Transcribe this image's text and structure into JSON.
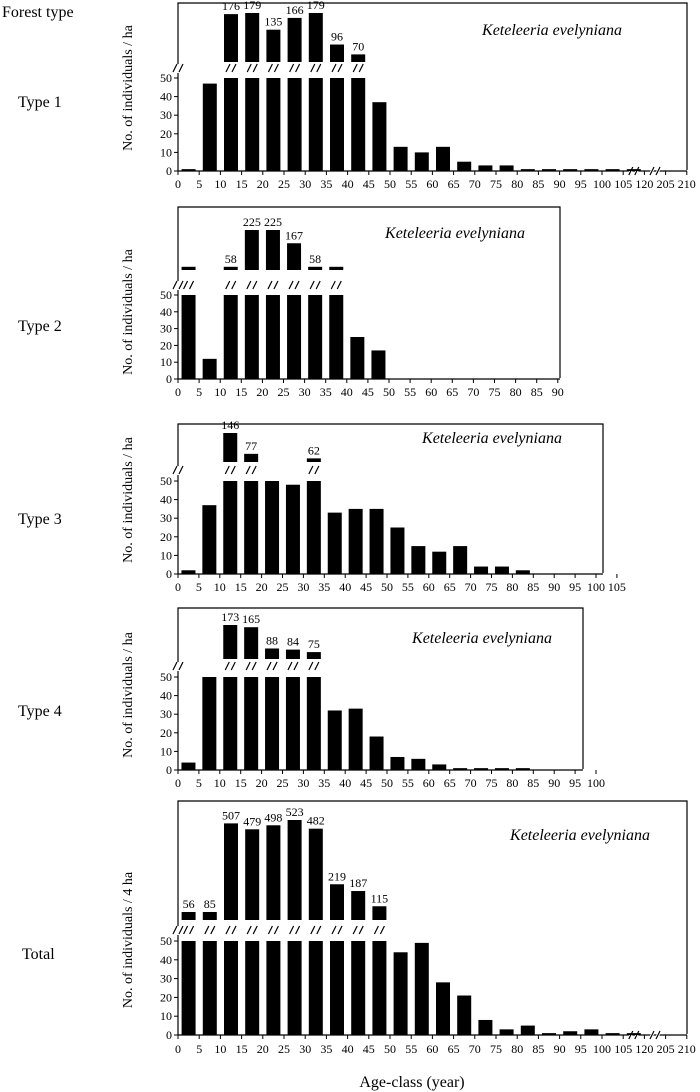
{
  "figure": {
    "header": "Forest type",
    "xlabel": "Age-class (year)"
  },
  "chart_data": [
    {
      "type": "bar",
      "row_label": "Type 1",
      "species": "Keteleeria evelyniana",
      "ylabel": "No. of individuals / ha",
      "ylim": [
        0,
        50
      ],
      "yticks": [
        0,
        10,
        20,
        30,
        40,
        50
      ],
      "xticks": [
        "0",
        "5",
        "10",
        "15",
        "20",
        "25",
        "30",
        "35",
        "40",
        "45",
        "50",
        "55",
        "60",
        "65",
        "70",
        "75",
        "80",
        "85",
        "90",
        "95",
        "100",
        "105",
        "120",
        "205",
        "210"
      ],
      "xbreaks_after_tick": [
        21,
        22
      ],
      "categories": [
        "7.5",
        "12.5",
        "17.5",
        "22.5",
        "27.5",
        "32.5",
        "37.5",
        "42.5",
        "47.5",
        "52.5",
        "57.5",
        "62.5",
        "67.5",
        "72.5",
        "77.5",
        "82.5",
        "87.5",
        "92.5",
        "97.5",
        "102.5",
        "122.5",
        "207.5"
      ],
      "values": [
        1,
        47,
        176,
        179,
        135,
        166,
        179,
        96,
        70,
        37,
        13,
        10,
        13,
        5,
        3,
        3,
        1,
        1,
        1,
        1,
        1,
        1
      ],
      "value_labels": [
        "",
        "",
        "176",
        "179",
        "135",
        "166",
        "179",
        "96",
        "70",
        "",
        "",
        "",
        "",
        "",
        "",
        "",
        "",
        "",
        "",
        "",
        "",
        ""
      ]
    },
    {
      "type": "bar",
      "row_label": "Type 2",
      "species": "Keteleeria evelyniana",
      "ylabel": "No. of individuals / ha",
      "ylim": [
        0,
        50
      ],
      "yticks": [
        0,
        10,
        20,
        30,
        40,
        50
      ],
      "xticks": [
        "0",
        "5",
        "10",
        "15",
        "20",
        "25",
        "30",
        "35",
        "40",
        "45",
        "50",
        "55",
        "60",
        "65",
        "70",
        "75",
        "80",
        "85",
        "90"
      ],
      "xbreaks_after_tick": [],
      "categories": [
        "7.5",
        "17.5",
        "22.5",
        "27.5",
        "32.5",
        "37.5",
        "42.5",
        "47.5",
        "52.5",
        "62.5"
      ],
      "values": [
        51,
        12,
        58,
        225,
        225,
        167,
        58,
        51,
        25,
        17
      ],
      "value_labels": [
        "",
        "",
        "58",
        "225",
        "225",
        "167",
        "58",
        "",
        "",
        ""
      ]
    },
    {
      "type": "bar",
      "row_label": "Type 3",
      "species": "Keteleeria evelyniana",
      "ylabel": "No. of individuals / ha",
      "ylim": [
        0,
        50
      ],
      "yticks": [
        0,
        10,
        20,
        30,
        40,
        50
      ],
      "xticks": [
        "0",
        "5",
        "10",
        "15",
        "20",
        "25",
        "30",
        "35",
        "40",
        "45",
        "50",
        "55",
        "60",
        "65",
        "70",
        "75",
        "80",
        "85",
        "90",
        "95",
        "100",
        "105"
      ],
      "xbreaks_after_tick": [],
      "categories": [
        "7.5",
        "12.5",
        "17.5",
        "22.5",
        "27.5",
        "32.5",
        "37.5",
        "42.5",
        "47.5",
        "52.5",
        "57.5",
        "62.5",
        "67.5",
        "72.5",
        "77.5",
        "87.5",
        "102.5"
      ],
      "values": [
        2,
        37,
        146,
        77,
        50,
        48,
        62,
        33,
        35,
        35,
        25,
        15,
        12,
        15,
        4,
        4,
        2
      ],
      "value_labels": [
        "",
        "",
        "146",
        "77",
        "",
        "",
        "62",
        "",
        "",
        "",
        "",
        "",
        "",
        "",
        "",
        "",
        ""
      ]
    },
    {
      "type": "bar",
      "row_label": "Type 4",
      "species": "Keteleeria evelyniana",
      "ylabel": "No. of individuals / ha",
      "ylim": [
        0,
        50
      ],
      "yticks": [
        0,
        10,
        20,
        30,
        40,
        50
      ],
      "xticks": [
        "0",
        "5",
        "10",
        "15",
        "20",
        "25",
        "30",
        "35",
        "40",
        "45",
        "50",
        "55",
        "60",
        "65",
        "70",
        "75",
        "80",
        "85",
        "90",
        "95",
        "100"
      ],
      "xbreaks_after_tick": [],
      "categories": [
        "7.5",
        "12.5",
        "17.5",
        "22.5",
        "27.5",
        "32.5",
        "37.5",
        "42.5",
        "47.5",
        "52.5",
        "57.5",
        "62.5",
        "67.5",
        "72.5",
        "77.5",
        "87.5",
        "97.5"
      ],
      "values": [
        4,
        50,
        173,
        165,
        88,
        84,
        75,
        32,
        33,
        18,
        7,
        6,
        3,
        1,
        1,
        1,
        1
      ],
      "value_labels": [
        "",
        "",
        "173",
        "165",
        "88",
        "84",
        "75",
        "",
        "",
        "",
        "",
        "",
        "",
        "",
        "",
        "",
        ""
      ]
    },
    {
      "type": "bar",
      "row_label": "Total",
      "species": "Keteleeria evelyniana",
      "ylabel": "No. of individuals / 4 ha",
      "ylim": [
        0,
        50
      ],
      "yticks": [
        0,
        10,
        20,
        30,
        40,
        50
      ],
      "xticks": [
        "0",
        "5",
        "10",
        "15",
        "20",
        "25",
        "30",
        "35",
        "40",
        "45",
        "50",
        "55",
        "60",
        "65",
        "70",
        "75",
        "80",
        "85",
        "90",
        "95",
        "100",
        "105",
        "120",
        "205",
        "210"
      ],
      "xbreaks_after_tick": [
        21,
        22
      ],
      "categories": [
        "7.5",
        "12.5",
        "17.5",
        "22.5",
        "27.5",
        "32.5",
        "37.5",
        "42.5",
        "47.5",
        "52.5",
        "57.5",
        "62.5",
        "67.5",
        "72.5",
        "77.5",
        "82.5",
        "87.5",
        "92.5",
        "97.5",
        "102.5",
        "122.5",
        "207.5"
      ],
      "values": [
        56,
        85,
        507,
        479,
        498,
        523,
        482,
        219,
        187,
        115,
        44,
        49,
        28,
        21,
        8,
        3,
        5,
        1,
        2,
        3,
        1,
        1
      ],
      "value_labels": [
        "56",
        "85",
        "507",
        "479",
        "498",
        "523",
        "482",
        "219",
        "187",
        "115",
        "",
        "",
        "",
        "",
        "",
        "",
        "",
        "",
        "",
        "",
        "",
        ""
      ]
    }
  ]
}
